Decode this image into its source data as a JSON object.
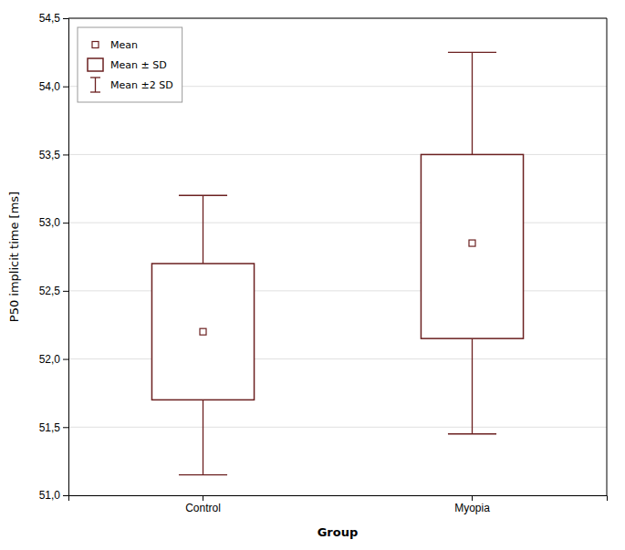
{
  "chart_data": {
    "type": "box",
    "xlabel": "Group",
    "ylabel": "P50 implicit time [ms]",
    "categories": [
      "Control",
      "Myopia"
    ],
    "color": "#6B2020",
    "series": [
      {
        "name": "Mean",
        "values": [
          52.2,
          52.85
        ]
      },
      {
        "name": "Mean ± SD",
        "highs": [
          52.7,
          53.5
        ],
        "lows": [
          51.7,
          52.15
        ]
      },
      {
        "name": "Mean ±2 SD",
        "highs": [
          53.2,
          54.25
        ],
        "lows": [
          51.15,
          51.45
        ]
      }
    ],
    "ylim": [
      51.0,
      54.5
    ],
    "yticks": [
      {
        "value": 51.0,
        "label": "51,0"
      },
      {
        "value": 51.5,
        "label": "51,5"
      },
      {
        "value": 52.0,
        "label": "52,0"
      },
      {
        "value": 52.5,
        "label": "52,5"
      },
      {
        "value": 53.0,
        "label": "53,0"
      },
      {
        "value": 53.5,
        "label": "53,5"
      },
      {
        "value": 54.0,
        "label": "54,0"
      },
      {
        "value": 54.5,
        "label": "54,5"
      }
    ],
    "grid": true,
    "legend": "upper left"
  }
}
